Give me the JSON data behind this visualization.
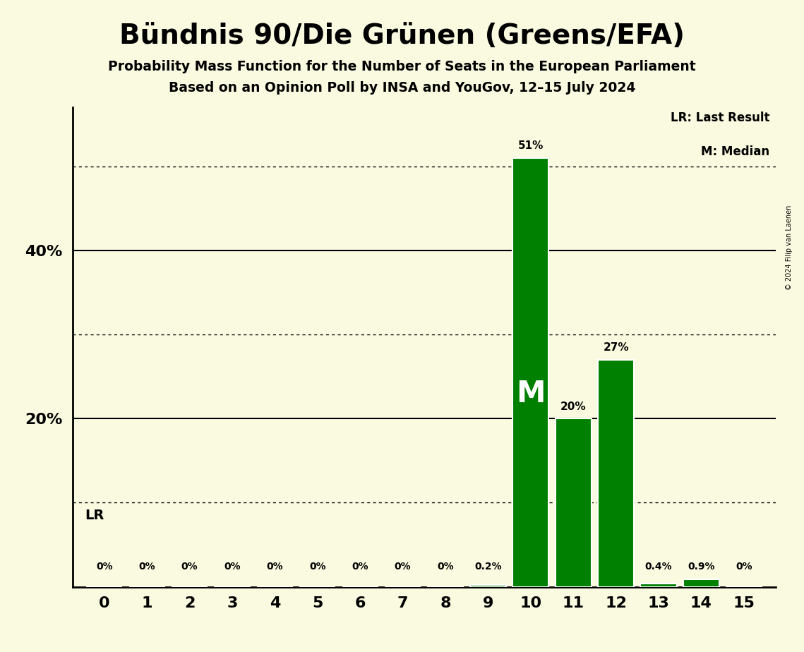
{
  "title": "Bündnis 90/Die Grünen (Greens/EFA)",
  "subtitle1": "Probability Mass Function for the Number of Seats in the European Parliament",
  "subtitle2": "Based on an Opinion Poll by INSA and YouGov, 12–15 July 2024",
  "copyright": "© 2024 Filip van Laenen",
  "seats": [
    0,
    1,
    2,
    3,
    4,
    5,
    6,
    7,
    8,
    9,
    10,
    11,
    12,
    13,
    14,
    15
  ],
  "probabilities": [
    0.0,
    0.0,
    0.0,
    0.0,
    0.0,
    0.0,
    0.0,
    0.0,
    0.0,
    0.2,
    51.0,
    20.0,
    27.0,
    0.4,
    0.9,
    0.0
  ],
  "bar_color": "#008000",
  "bar_edge_color": "#ffffff",
  "background_color": "#FAFAE0",
  "median_seat": 10,
  "median_label": "M",
  "lr_label": "LR",
  "label_texts": [
    "0%",
    "0%",
    "0%",
    "0%",
    "0%",
    "0%",
    "0%",
    "0%",
    "0%",
    "0.2%",
    "51%",
    "20%",
    "27%",
    "0.4%",
    "0.9%",
    "0%"
  ],
  "ylim": [
    0,
    57
  ],
  "dotted_lines": [
    10,
    30,
    50
  ],
  "solid_lines": [
    20,
    40
  ],
  "legend_lr": "LR: Last Result",
  "legend_m": "M: Median"
}
